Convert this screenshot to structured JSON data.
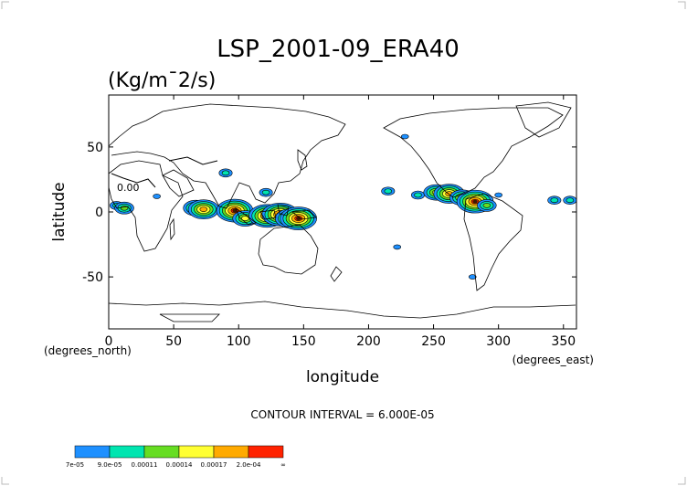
{
  "chart_data": {
    "type": "heatmap",
    "title": "LSP_2001-09_ERA40",
    "units": "(Kg/m¯2/s)",
    "xlabel": "longitude",
    "ylabel": "latitude",
    "x_units_note": "(degrees_east)",
    "y_units_note": "(degrees_north)",
    "xlim": [
      0,
      360
    ],
    "ylim": [
      -90,
      90
    ],
    "x_ticks": [
      0,
      50,
      100,
      150,
      200,
      250,
      300,
      350
    ],
    "y_ticks": [
      -50,
      0,
      50
    ],
    "contour_interval_text": "CONTOUR INTERVAL = 6.000E-05",
    "inline_contour_label": "0.00",
    "legend": {
      "placement": "bottom-left",
      "labels": [
        "7e-05",
        "9.0e-05",
        "0.00011",
        "0.00014",
        "0.00017",
        "2.0e-04",
        "∞"
      ],
      "colors": [
        "#1e90ff",
        "#00e5b0",
        "#66dd22",
        "#ffff33",
        "#ffaa00",
        "#ff2200"
      ]
    },
    "regions": [
      {
        "lon": 6,
        "lat": 5,
        "level": 1
      },
      {
        "lon": 12,
        "lat": 3,
        "level": 2
      },
      {
        "lon": 37,
        "lat": 12,
        "level": 0
      },
      {
        "lon": 67,
        "lat": 3,
        "level": 3
      },
      {
        "lon": 73,
        "lat": 2,
        "level": 4
      },
      {
        "lon": 90,
        "lat": 30,
        "level": 1
      },
      {
        "lon": 97,
        "lat": 1,
        "level": 5
      },
      {
        "lon": 105,
        "lat": -5,
        "level": 3
      },
      {
        "lon": 121,
        "lat": 15,
        "level": 1
      },
      {
        "lon": 122,
        "lat": -3,
        "level": 5
      },
      {
        "lon": 132,
        "lat": -2,
        "level": 5
      },
      {
        "lon": 140,
        "lat": -5,
        "level": 4
      },
      {
        "lon": 146,
        "lat": -5,
        "level": 5
      },
      {
        "lon": 215,
        "lat": 16,
        "level": 1
      },
      {
        "lon": 222,
        "lat": -27,
        "level": 0
      },
      {
        "lon": 238,
        "lat": 13,
        "level": 1
      },
      {
        "lon": 252,
        "lat": 15,
        "level": 3
      },
      {
        "lon": 262,
        "lat": 14,
        "level": 4
      },
      {
        "lon": 272,
        "lat": 11,
        "level": 3
      },
      {
        "lon": 282,
        "lat": 8,
        "level": 5
      },
      {
        "lon": 291,
        "lat": 5,
        "level": 2
      },
      {
        "lon": 300,
        "lat": 13,
        "level": 0
      },
      {
        "lon": 343,
        "lat": 9,
        "level": 1
      },
      {
        "lon": 355,
        "lat": 9,
        "level": 1
      },
      {
        "lon": 280,
        "lat": -50,
        "level": 0
      },
      {
        "lon": 228,
        "lat": 58,
        "level": 0
      }
    ]
  }
}
